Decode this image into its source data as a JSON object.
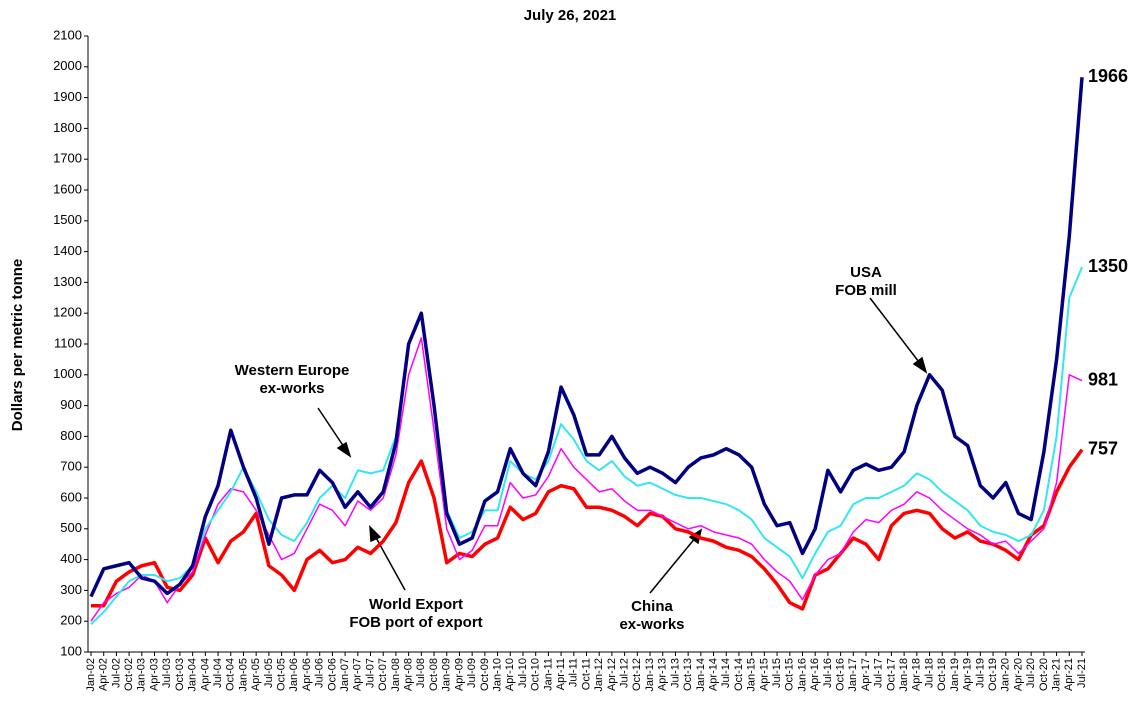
{
  "chart_data": {
    "type": "line",
    "title": "July 26, 2021",
    "y_label": "Dollars per metric tonne",
    "categories": [
      "Jan-02",
      "Apr-02",
      "Jul-02",
      "Oct-02",
      "Jan-03",
      "Apr-03",
      "Jul-03",
      "Oct-03",
      "Jan-04",
      "Apr-04",
      "Jul-04",
      "Oct-04",
      "Jan-05",
      "Apr-05",
      "Jul-05",
      "Oct-05",
      "Jan-06",
      "Apr-06",
      "Jul-06",
      "Oct-06",
      "Jan-07",
      "Apr-07",
      "Jul-07",
      "Oct-07",
      "Jan-08",
      "Apr-08",
      "Jul-08",
      "Oct-08",
      "Jan-09",
      "Apr-09",
      "Jul-09",
      "Oct-09",
      "Jan-10",
      "Apr-10",
      "Jul-10",
      "Oct-10",
      "Jan-11",
      "Apr-11",
      "Jul-11",
      "Oct-11",
      "Jan-12",
      "Apr-12",
      "Jul-12",
      "Oct-12",
      "Jan-13",
      "Apr-13",
      "Jul-13",
      "Oct-13",
      "Jan-14",
      "Apr-14",
      "Jul-14",
      "Oct-14",
      "Jan-15",
      "Apr-15",
      "Jul-15",
      "Oct-15",
      "Jan-16",
      "Apr-16",
      "Jul-16",
      "Oct-16",
      "Jan-17",
      "Apr-17",
      "Jul-17",
      "Oct-17",
      "Jan-18",
      "Apr-18",
      "Jul-18",
      "Oct-18",
      "Jan-19",
      "Apr-19",
      "Jul-19",
      "Oct-19",
      "Jan-20",
      "Apr-20",
      "Jul-20",
      "Oct-20",
      "Jan-21",
      "Apr-21",
      "Jul-21"
    ],
    "series": [
      {
        "color": "#000080",
        "values": [
          280,
          370,
          380,
          390,
          340,
          330,
          290,
          320,
          380,
          540,
          640,
          820,
          700,
          600,
          450,
          600,
          610,
          610,
          690,
          650,
          570,
          620,
          570,
          620,
          780,
          1100,
          1200,
          900,
          550,
          450,
          470,
          590,
          620,
          760,
          680,
          640,
          750,
          960,
          870,
          740,
          740,
          800,
          730,
          680,
          700,
          680,
          650,
          700,
          730,
          740,
          760,
          740,
          700,
          580,
          510,
          520,
          420,
          500,
          690,
          620,
          690,
          710,
          690,
          700,
          750,
          900,
          1000,
          950,
          800,
          770,
          640,
          600,
          650,
          550,
          530,
          750,
          1050,
          1450,
          1966
        ]
      },
      {
        "color": "#33e6f0",
        "values": [
          190,
          230,
          280,
          330,
          350,
          350,
          330,
          340,
          380,
          500,
          560,
          620,
          700,
          620,
          530,
          480,
          460,
          520,
          600,
          640,
          600,
          690,
          680,
          690,
          800,
          1100,
          1200,
          900,
          560,
          470,
          490,
          560,
          560,
          720,
          680,
          660,
          720,
          840,
          790,
          720,
          690,
          720,
          670,
          640,
          650,
          630,
          610,
          600,
          600,
          590,
          580,
          560,
          530,
          470,
          440,
          410,
          340,
          420,
          490,
          510,
          580,
          600,
          600,
          620,
          640,
          680,
          660,
          620,
          590,
          560,
          510,
          490,
          480,
          460,
          480,
          560,
          800,
          1250,
          1350
        ]
      },
      {
        "color": "#ff00ff",
        "values": [
          200,
          260,
          290,
          310,
          350,
          330,
          260,
          320,
          360,
          480,
          580,
          630,
          620,
          560,
          480,
          400,
          420,
          500,
          580,
          560,
          510,
          590,
          560,
          600,
          740,
          1000,
          1120,
          820,
          500,
          400,
          430,
          510,
          510,
          650,
          600,
          610,
          670,
          760,
          700,
          660,
          620,
          630,
          590,
          560,
          560,
          540,
          520,
          500,
          510,
          490,
          480,
          470,
          450,
          400,
          360,
          330,
          270,
          350,
          400,
          420,
          490,
          530,
          520,
          560,
          580,
          620,
          600,
          560,
          530,
          500,
          480,
          450,
          460,
          420,
          460,
          500,
          650,
          1000,
          981
        ]
      },
      {
        "color": "#ff0000",
        "values": [
          250,
          250,
          330,
          360,
          380,
          390,
          310,
          300,
          350,
          470,
          390,
          460,
          490,
          550,
          380,
          350,
          300,
          400,
          430,
          390,
          400,
          440,
          420,
          460,
          520,
          650,
          720,
          600,
          390,
          420,
          410,
          450,
          470,
          570,
          530,
          550,
          620,
          640,
          630,
          570,
          570,
          560,
          540,
          510,
          550,
          540,
          500,
          490,
          470,
          460,
          440,
          430,
          410,
          370,
          320,
          260,
          240,
          350,
          370,
          420,
          470,
          450,
          400,
          510,
          550,
          560,
          550,
          500,
          470,
          490,
          460,
          450,
          430,
          400,
          480,
          510,
          620,
          700,
          757
        ]
      }
    ],
    "ylim": [
      100,
      2100
    ],
    "yticks": [
      100,
      200,
      300,
      400,
      500,
      600,
      700,
      800,
      900,
      1000,
      1100,
      1200,
      1300,
      1400,
      1500,
      1600,
      1700,
      1800,
      1900,
      2000,
      2100
    ],
    "annotations": [
      [
        "USA",
        "FOB mill"
      ],
      [
        "Western Europe",
        "ex-works"
      ],
      [
        "World Export",
        "FOB port of export"
      ],
      [
        "China",
        "ex-works"
      ]
    ]
  }
}
